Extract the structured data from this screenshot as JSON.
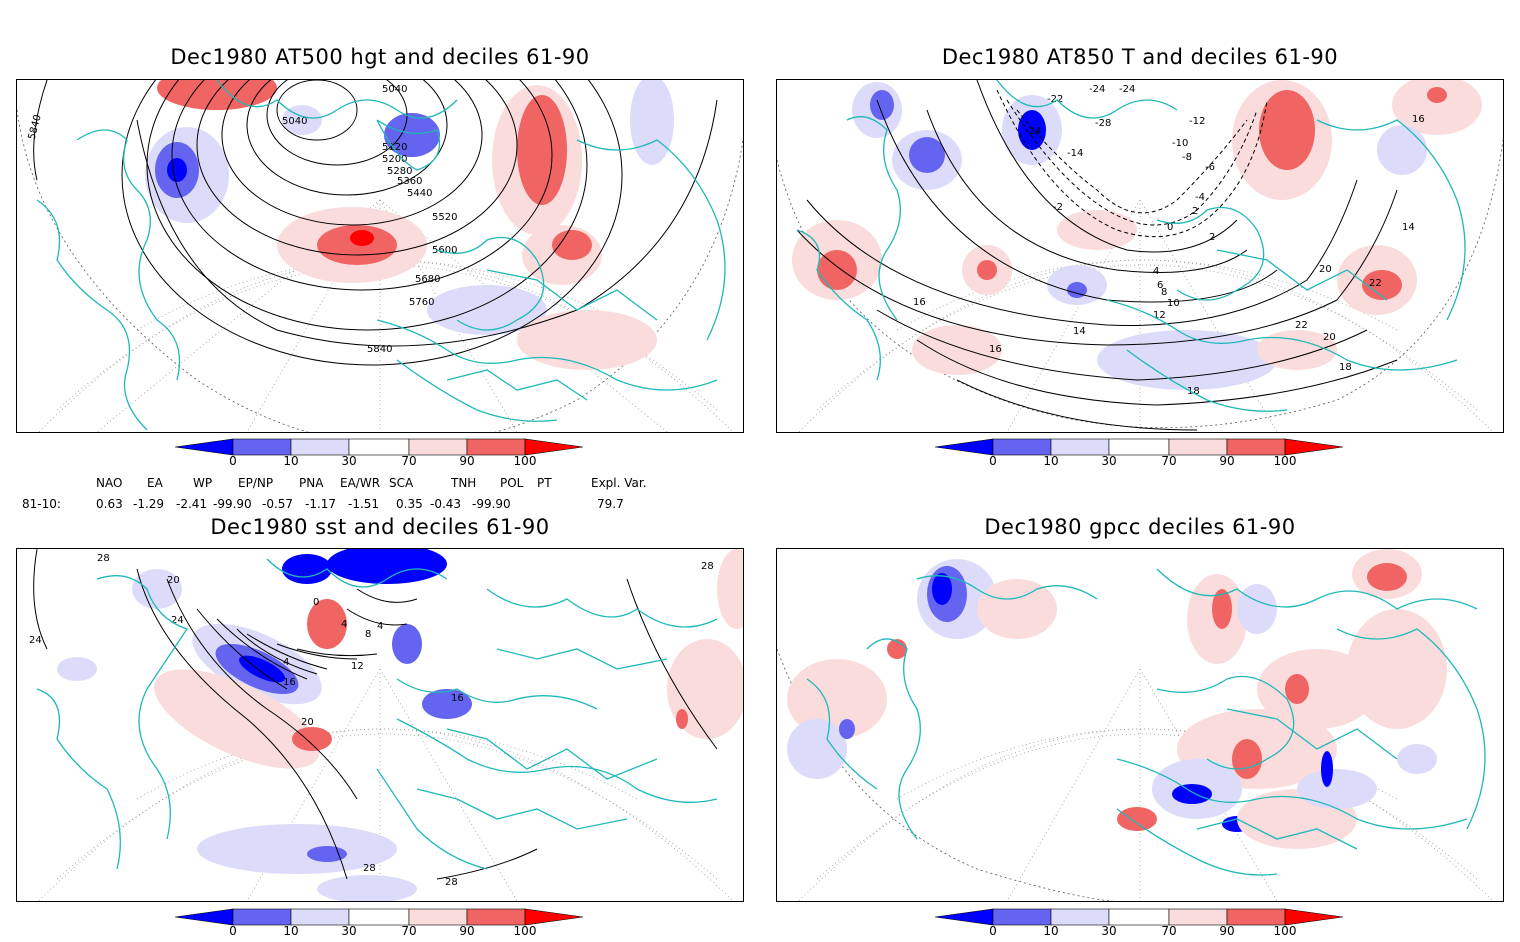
{
  "panels": [
    {
      "title": "Dec1980 AT500 hgt and deciles 61-90",
      "contour_labels": [
        "5040",
        "5040",
        "5120",
        "5200",
        "5280",
        "5360",
        "5440",
        "5520",
        "5600",
        "5680",
        "5760",
        "5840",
        "5840"
      ]
    },
    {
      "title": "Dec1980 AT850 T and deciles 61-90",
      "contour_labels": [
        "-24",
        "-24",
        "-22",
        "-24",
        "-28",
        "-14",
        "-12",
        "-10",
        "-8",
        "-6",
        "-4",
        "-2",
        "0",
        "2",
        "2",
        "4",
        "6",
        "8",
        "10",
        "12",
        "14",
        "14",
        "16",
        "16",
        "16",
        "18",
        "18",
        "20",
        "20",
        "22",
        "22"
      ]
    },
    {
      "title": "Dec1980 sst and deciles 61-90",
      "contour_labels": [
        "28",
        "20",
        "24",
        "24",
        "0",
        "4",
        "8",
        "4",
        "4",
        "12",
        "16",
        "16",
        "20",
        "28",
        "28",
        "28"
      ]
    },
    {
      "title": "Dec1980 gpcc deciles 61-90"
    }
  ],
  "colorbar": {
    "ticks": [
      "0",
      "10",
      "30",
      "70",
      "90",
      "100"
    ],
    "colors": [
      "#0000ff",
      "#6464f0",
      "#dcdcfa",
      "#ffffff",
      "#fadcdc",
      "#f06464",
      "#ff0000"
    ]
  },
  "indices": {
    "headers": [
      "NAO",
      "EA",
      "WP",
      "EP/NP",
      "PNA",
      "EA/WR",
      "SCA",
      "TNH",
      "POL",
      "PT",
      "Expl. Var."
    ],
    "row_label": "81-10:",
    "values": [
      "0.63",
      "-1.29",
      "-2.41",
      "-99.90",
      "-0.57",
      "-1.17",
      "-1.51",
      "0.35",
      "-0.43",
      "-99.90",
      "79.7"
    ]
  }
}
